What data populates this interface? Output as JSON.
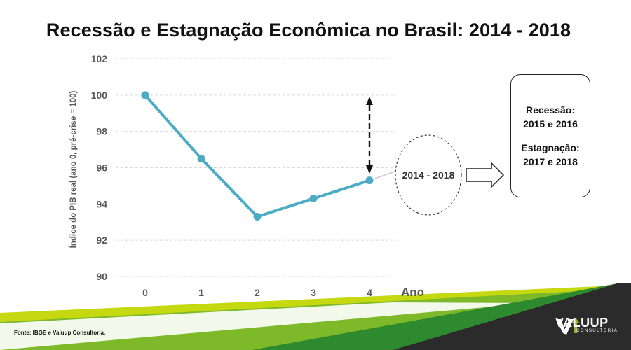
{
  "title": "Recessão e Estagnação Econômica no Brasil: 2014 - 2018",
  "chart_data": {
    "type": "line",
    "title": "Recessão e Estagnação Econômica no Brasil: 2014 - 2018",
    "xlabel": "Ano",
    "ylabel": "Índice do PIB real (ano 0, pré-crise = 100)",
    "categories": [
      "0",
      "1",
      "2",
      "3",
      "4"
    ],
    "values": [
      100,
      96.5,
      93.3,
      94.3,
      95.3
    ],
    "yticks": [
      "90",
      "92",
      "94",
      "96",
      "98",
      "100",
      "102"
    ],
    "ylim": [
      90,
      102
    ],
    "grid": true,
    "series_color": "#4BACC6"
  },
  "annotation": {
    "ellipse_label": "2014 - 2018"
  },
  "box": {
    "recession_label": "Recessão:",
    "recession_years": "2015 e 2016",
    "stagnation_label": "Estagnação:",
    "stagnation_years": "2017 e 2018"
  },
  "footer": {
    "source": "Fonte: IBGE e Valuup Consultoria.",
    "logo_text": "VALUUP",
    "logo_sub": "CONSULTORIA"
  },
  "colors": {
    "line": "#4BACC6",
    "green_light": "#C6D80F",
    "green_mid": "#8DBB1F",
    "green_dark": "#2D8A2E",
    "dark_band": "#2B2B2B"
  }
}
